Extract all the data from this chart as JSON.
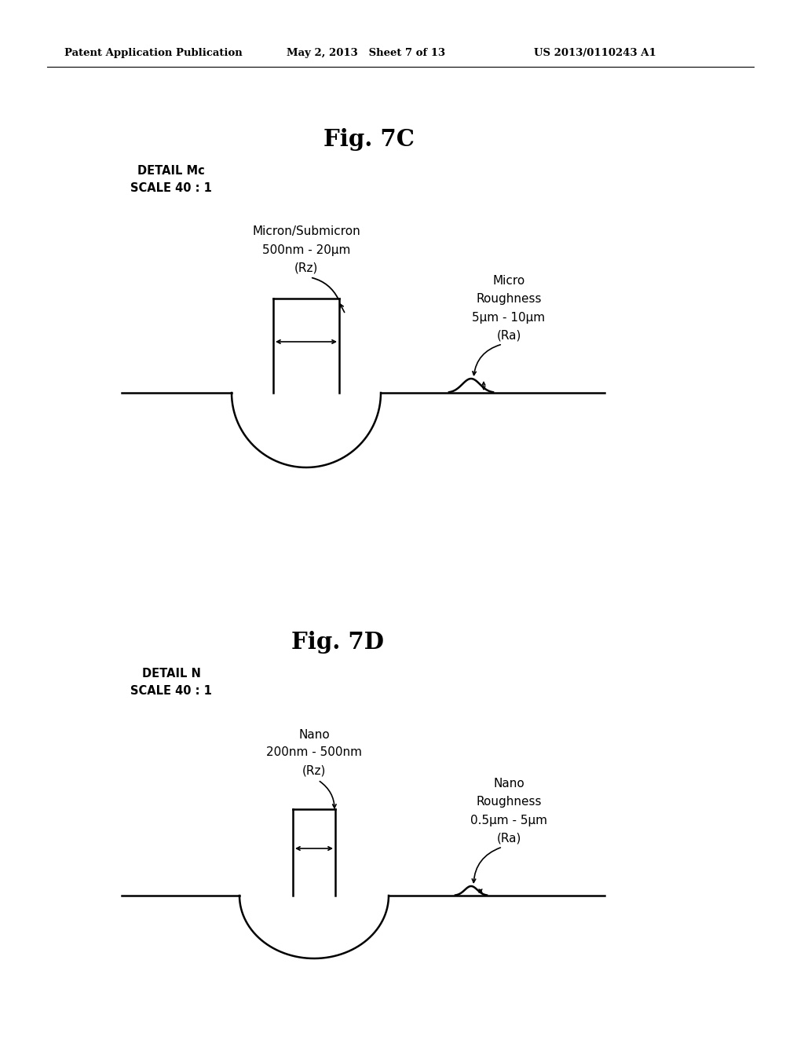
{
  "bg_color": "#ffffff",
  "header_text": "Patent Application Publication",
  "header_date": "May 2, 2013   Sheet 7 of 13",
  "header_patent": "US 2013/0110243 A1",
  "fig7c_title": "Fig. 7C",
  "fig7c_detail": "DETAIL Mc\nSCALE 40 : 1",
  "fig7c_label1_line1": "Micron/Submicron",
  "fig7c_label1_line2": "500nm - 20μm",
  "fig7c_label1_line3": "(Rz)",
  "fig7c_label2_line1": "Micro",
  "fig7c_label2_line2": "Roughness",
  "fig7c_label2_line3": "5μm - 10μm",
  "fig7c_label2_line4": "(Ra)",
  "fig7d_title": "Fig. 7D",
  "fig7d_detail": "DETAIL N\nSCALE 40 : 1",
  "fig7d_label1_line1": "Nano",
  "fig7d_label1_line2": "200nm - 500nm",
  "fig7d_label1_line3": "(Rz)",
  "fig7d_label2_line1": "Nano",
  "fig7d_label2_line2": "Roughness",
  "fig7d_label2_line3": "0.5μm - 5μm",
  "fig7d_label2_line4": "(Ra)"
}
